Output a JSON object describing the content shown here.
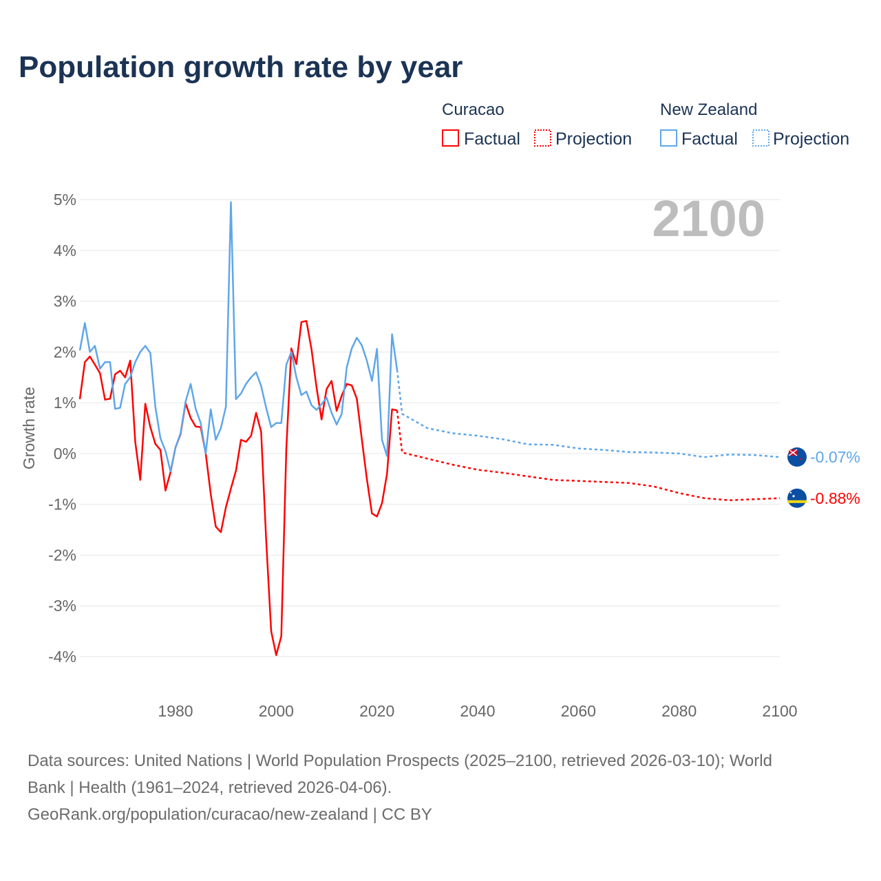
{
  "title": "Population growth rate by year",
  "year_display": "2100",
  "legend": {
    "groups": [
      {
        "country": "Curacao",
        "factual": "Factual",
        "projection": "Projection",
        "color": "#ff0000"
      },
      {
        "country": "New Zealand",
        "factual": "Factual",
        "projection": "Projection",
        "color": "#5ea6ea"
      }
    ]
  },
  "footer": {
    "line1": "Data sources: United Nations | World Population Prospects (2025–2100, retrieved 2026-03-10); World",
    "line2": "Bank | Health (1961–2024, retrieved 2026-04-06).",
    "line3": "GeoRank.org/population/curacao/new-zealand | CC BY"
  },
  "chart_data": {
    "type": "line",
    "title": "Population growth rate by year",
    "xlabel": "",
    "ylabel": "Growth rate",
    "xlim": [
      1961,
      2100
    ],
    "ylim": [
      -4,
      5
    ],
    "x_ticks": [
      "1980",
      "2000",
      "2020",
      "2040",
      "2060",
      "2080",
      "2100"
    ],
    "y_ticks": [
      "5%",
      "4%",
      "3%",
      "2%",
      "1%",
      "0%",
      "-1%",
      "-2%",
      "-3%",
      "-4%"
    ],
    "grid": true,
    "series": [
      {
        "name": "Curacao",
        "color": "#ff0000",
        "end_label": "-0.88%",
        "factual": {
          "x": [
            1961,
            1962,
            1963,
            1964,
            1965,
            1966,
            1967,
            1968,
            1969,
            1970,
            1971,
            1972,
            1973,
            1974,
            1975,
            1976,
            1977,
            1978,
            1979,
            1980,
            1981,
            1982,
            1983,
            1984,
            1985,
            1986,
            1987,
            1988,
            1989,
            1990,
            1991,
            1992,
            1993,
            1994,
            1995,
            1996,
            1997,
            1998,
            1999,
            2000,
            2001,
            2002,
            2003,
            2004,
            2005,
            2006,
            2007,
            2008,
            2009,
            2010,
            2011,
            2012,
            2013,
            2014,
            2015,
            2016,
            2017,
            2018,
            2019,
            2020,
            2021,
            2022,
            2023,
            2024
          ],
          "y": [
            1.07,
            1.8,
            1.91,
            1.75,
            1.58,
            1.06,
            1.08,
            1.56,
            1.63,
            1.5,
            1.83,
            0.23,
            -0.52,
            0.98,
            0.52,
            0.19,
            0.07,
            -0.73,
            -0.37,
            0.12,
            0.38,
            0.99,
            0.7,
            0.53,
            0.52,
            0.0,
            -0.8,
            -1.44,
            -1.55,
            -1.06,
            -0.69,
            -0.34,
            0.27,
            0.23,
            0.35,
            0.8,
            0.43,
            -1.7,
            -3.5,
            -3.97,
            -3.6,
            0.1,
            2.07,
            1.76,
            2.59,
            2.61,
            2.05,
            1.3,
            0.67,
            1.27,
            1.43,
            0.84,
            1.14,
            1.37,
            1.34,
            1.08,
            0.28,
            -0.5,
            -1.18,
            -1.24,
            -0.98,
            -0.4,
            0.87,
            0.85
          ]
        },
        "projection": {
          "x": [
            2024,
            2025,
            2030,
            2035,
            2040,
            2045,
            2050,
            2055,
            2060,
            2065,
            2070,
            2075,
            2080,
            2085,
            2090,
            2095,
            2100
          ],
          "y": [
            0.85,
            0.02,
            -0.1,
            -0.22,
            -0.32,
            -0.38,
            -0.45,
            -0.52,
            -0.54,
            -0.56,
            -0.58,
            -0.65,
            -0.78,
            -0.88,
            -0.92,
            -0.9,
            -0.88
          ]
        }
      },
      {
        "name": "New Zealand",
        "color": "#5ea6ea",
        "end_label": "-0.07%",
        "factual": {
          "x": [
            1961,
            1962,
            1963,
            1964,
            1965,
            1966,
            1967,
            1968,
            1969,
            1970,
            1971,
            1972,
            1973,
            1974,
            1975,
            1976,
            1977,
            1978,
            1979,
            1980,
            1981,
            1982,
            1983,
            1984,
            1985,
            1986,
            1987,
            1988,
            1989,
            1990,
            1991,
            1992,
            1993,
            1994,
            1995,
            1996,
            1997,
            1998,
            1999,
            2000,
            2001,
            2002,
            2003,
            2004,
            2005,
            2006,
            2007,
            2008,
            2009,
            2010,
            2011,
            2012,
            2013,
            2014,
            2015,
            2016,
            2017,
            2018,
            2019,
            2020,
            2021,
            2022,
            2023,
            2024
          ],
          "y": [
            2.03,
            2.57,
            2.0,
            2.12,
            1.67,
            1.8,
            1.8,
            0.88,
            0.9,
            1.37,
            1.5,
            1.8,
            2.0,
            2.12,
            1.98,
            0.92,
            0.3,
            0.05,
            -0.35,
            0.12,
            0.4,
            1.02,
            1.37,
            0.88,
            0.6,
            0.0,
            0.87,
            0.27,
            0.5,
            0.92,
            4.95,
            1.07,
            1.18,
            1.37,
            1.5,
            1.6,
            1.33,
            0.9,
            0.52,
            0.6,
            0.6,
            1.75,
            2.0,
            1.5,
            1.15,
            1.22,
            0.95,
            0.86,
            0.97,
            1.1,
            0.8,
            0.57,
            0.78,
            1.7,
            2.07,
            2.28,
            2.13,
            1.83,
            1.43,
            2.06,
            0.27,
            -0.05,
            2.35,
            1.65
          ]
        },
        "projection": {
          "x": [
            2024,
            2025,
            2030,
            2035,
            2040,
            2045,
            2050,
            2055,
            2060,
            2065,
            2070,
            2075,
            2080,
            2085,
            2090,
            2095,
            2100
          ],
          "y": [
            1.65,
            0.78,
            0.5,
            0.4,
            0.35,
            0.28,
            0.18,
            0.17,
            0.1,
            0.07,
            0.03,
            0.02,
            0.0,
            -0.07,
            -0.02,
            -0.03,
            -0.07
          ]
        }
      }
    ]
  }
}
